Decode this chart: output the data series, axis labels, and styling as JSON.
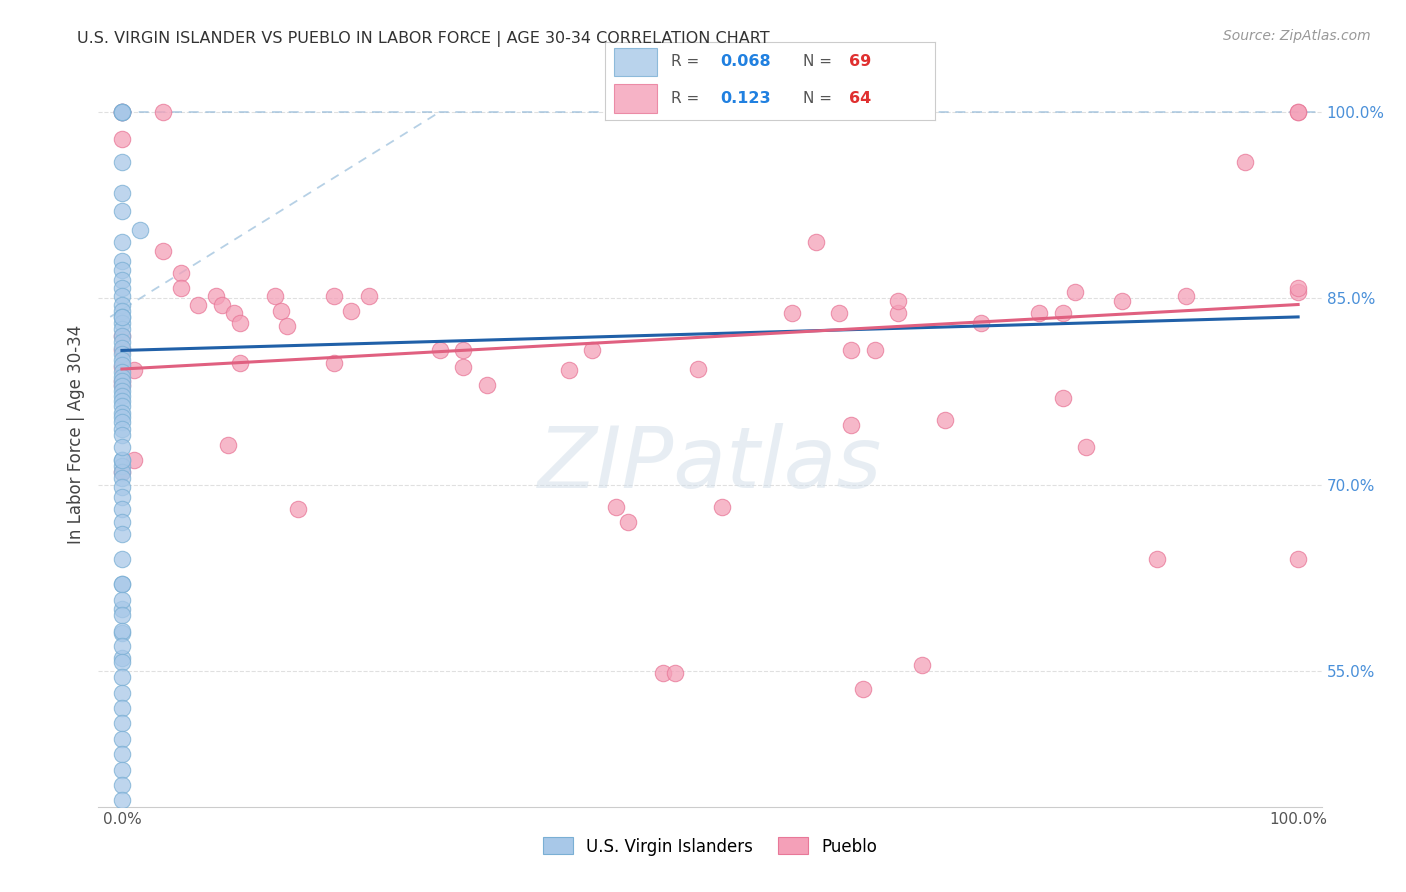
{
  "title": "U.S. VIRGIN ISLANDER VS PUEBLO IN LABOR FORCE | AGE 30-34 CORRELATION CHART",
  "source": "Source: ZipAtlas.com",
  "ylabel": "In Labor Force | Age 30-34",
  "xlim": [
    -0.02,
    1.02
  ],
  "ylim": [
    0.44,
    1.04
  ],
  "xticks": [
    0.0,
    0.2,
    0.4,
    0.6,
    0.8,
    1.0
  ],
  "xticklabels": [
    "0.0%",
    "",
    "",
    "",
    "",
    "100.0%"
  ],
  "yticks": [
    0.55,
    0.7,
    0.85,
    1.0
  ],
  "yticklabels": [
    "55.0%",
    "70.0%",
    "85.0%",
    "100.0%"
  ],
  "blue_color": "#a8c8e8",
  "pink_color": "#f4a0b8",
  "blue_edge_color": "#7aafd4",
  "pink_edge_color": "#e87898",
  "blue_line_color": "#2060a8",
  "pink_line_color": "#e06080",
  "dash_color": "#90b8d8",
  "blue_r": "0.068",
  "blue_n": "69",
  "pink_r": "0.123",
  "pink_n": "64",
  "r_color": "#2080e0",
  "n_color": "#e03030",
  "watermark_text": "ZIPatlas",
  "watermark_color": "#d0dde8",
  "background_color": "#ffffff",
  "grid_color": "#e0e0e0",
  "blue_regression": [
    0.0,
    0.808,
    1.0,
    0.835
  ],
  "pink_regression": [
    0.0,
    0.793,
    1.0,
    0.845
  ],
  "dash_line": [
    0.0,
    1.0,
    0.285,
    1.0
  ],
  "blue_scatter": [
    [
      0.0,
      1.0
    ],
    [
      0.0,
      1.0
    ],
    [
      0.0,
      1.0
    ],
    [
      0.0,
      1.0
    ],
    [
      0.0,
      0.96
    ],
    [
      0.0,
      0.935
    ],
    [
      0.0,
      0.92
    ],
    [
      0.015,
      0.905
    ],
    [
      0.0,
      0.895
    ],
    [
      0.0,
      0.88
    ],
    [
      0.0,
      0.873
    ],
    [
      0.0,
      0.865
    ],
    [
      0.0,
      0.858
    ],
    [
      0.0,
      0.852
    ],
    [
      0.0,
      0.845
    ],
    [
      0.0,
      0.84
    ],
    [
      0.0,
      0.835
    ],
    [
      0.0,
      0.83
    ],
    [
      0.0,
      0.825
    ],
    [
      0.0,
      0.82
    ],
    [
      0.0,
      0.815
    ],
    [
      0.0,
      0.81
    ],
    [
      0.0,
      0.805
    ],
    [
      0.0,
      0.8
    ],
    [
      0.0,
      0.796
    ],
    [
      0.0,
      0.791
    ],
    [
      0.0,
      0.787
    ],
    [
      0.0,
      0.783
    ],
    [
      0.0,
      0.779
    ],
    [
      0.0,
      0.775
    ],
    [
      0.0,
      0.771
    ],
    [
      0.0,
      0.767
    ],
    [
      0.0,
      0.763
    ],
    [
      0.0,
      0.758
    ],
    [
      0.0,
      0.754
    ],
    [
      0.0,
      0.75
    ],
    [
      0.0,
      0.745
    ],
    [
      0.0,
      0.74
    ],
    [
      0.0,
      0.835
    ],
    [
      0.0,
      0.72
    ],
    [
      0.0,
      0.715
    ],
    [
      0.0,
      0.71
    ],
    [
      0.0,
      0.705
    ],
    [
      0.0,
      0.698
    ],
    [
      0.0,
      0.69
    ],
    [
      0.0,
      0.68
    ],
    [
      0.0,
      0.67
    ],
    [
      0.0,
      0.66
    ],
    [
      0.0,
      0.64
    ],
    [
      0.0,
      0.62
    ],
    [
      0.0,
      0.6
    ],
    [
      0.0,
      0.58
    ],
    [
      0.0,
      0.56
    ],
    [
      0.0,
      0.62
    ],
    [
      0.0,
      0.607
    ],
    [
      0.0,
      0.595
    ],
    [
      0.0,
      0.582
    ],
    [
      0.0,
      0.57
    ],
    [
      0.0,
      0.557
    ],
    [
      0.0,
      0.545
    ],
    [
      0.0,
      0.532
    ],
    [
      0.0,
      0.52
    ],
    [
      0.0,
      0.508
    ],
    [
      0.0,
      0.495
    ],
    [
      0.0,
      0.483
    ],
    [
      0.0,
      0.47
    ],
    [
      0.0,
      0.458
    ],
    [
      0.0,
      0.446
    ],
    [
      0.0,
      0.72
    ],
    [
      0.0,
      0.73
    ]
  ],
  "pink_scatter": [
    [
      0.0,
      1.0
    ],
    [
      0.0,
      1.0
    ],
    [
      0.035,
      1.0
    ],
    [
      0.0,
      0.978
    ],
    [
      0.035,
      0.888
    ],
    [
      0.05,
      0.87
    ],
    [
      0.05,
      0.858
    ],
    [
      0.065,
      0.845
    ],
    [
      0.08,
      0.852
    ],
    [
      0.085,
      0.845
    ],
    [
      0.095,
      0.838
    ],
    [
      0.1,
      0.83
    ],
    [
      0.13,
      0.852
    ],
    [
      0.135,
      0.84
    ],
    [
      0.14,
      0.828
    ],
    [
      0.18,
      0.852
    ],
    [
      0.195,
      0.84
    ],
    [
      0.21,
      0.852
    ],
    [
      0.0,
      0.82
    ],
    [
      0.0,
      0.808
    ],
    [
      0.0,
      0.795
    ],
    [
      0.0,
      0.783
    ],
    [
      0.01,
      0.792
    ],
    [
      0.0,
      0.78
    ],
    [
      0.01,
      0.72
    ],
    [
      0.0,
      0.71
    ],
    [
      0.09,
      0.732
    ],
    [
      0.1,
      0.798
    ],
    [
      0.15,
      0.68
    ],
    [
      0.18,
      0.798
    ],
    [
      0.27,
      0.808
    ],
    [
      0.29,
      0.808
    ],
    [
      0.29,
      0.795
    ],
    [
      0.31,
      0.78
    ],
    [
      0.38,
      0.792
    ],
    [
      0.4,
      0.808
    ],
    [
      0.42,
      0.682
    ],
    [
      0.43,
      0.67
    ],
    [
      0.46,
      0.548
    ],
    [
      0.47,
      0.548
    ],
    [
      0.49,
      0.793
    ],
    [
      0.51,
      0.682
    ],
    [
      0.57,
      0.838
    ],
    [
      0.59,
      0.895
    ],
    [
      0.61,
      0.838
    ],
    [
      0.62,
      0.808
    ],
    [
      0.62,
      0.748
    ],
    [
      0.63,
      0.535
    ],
    [
      0.64,
      0.808
    ],
    [
      0.66,
      0.838
    ],
    [
      0.66,
      0.848
    ],
    [
      0.68,
      0.555
    ],
    [
      0.7,
      0.752
    ],
    [
      0.73,
      0.83
    ],
    [
      0.78,
      0.838
    ],
    [
      0.8,
      0.77
    ],
    [
      0.8,
      0.838
    ],
    [
      0.81,
      0.855
    ],
    [
      0.82,
      0.73
    ],
    [
      0.85,
      0.848
    ],
    [
      0.88,
      0.64
    ],
    [
      0.905,
      0.852
    ],
    [
      0.955,
      0.96
    ],
    [
      1.0,
      0.855
    ],
    [
      1.0,
      0.64
    ],
    [
      1.0,
      1.0
    ],
    [
      1.0,
      1.0
    ],
    [
      1.0,
      0.858
    ]
  ]
}
